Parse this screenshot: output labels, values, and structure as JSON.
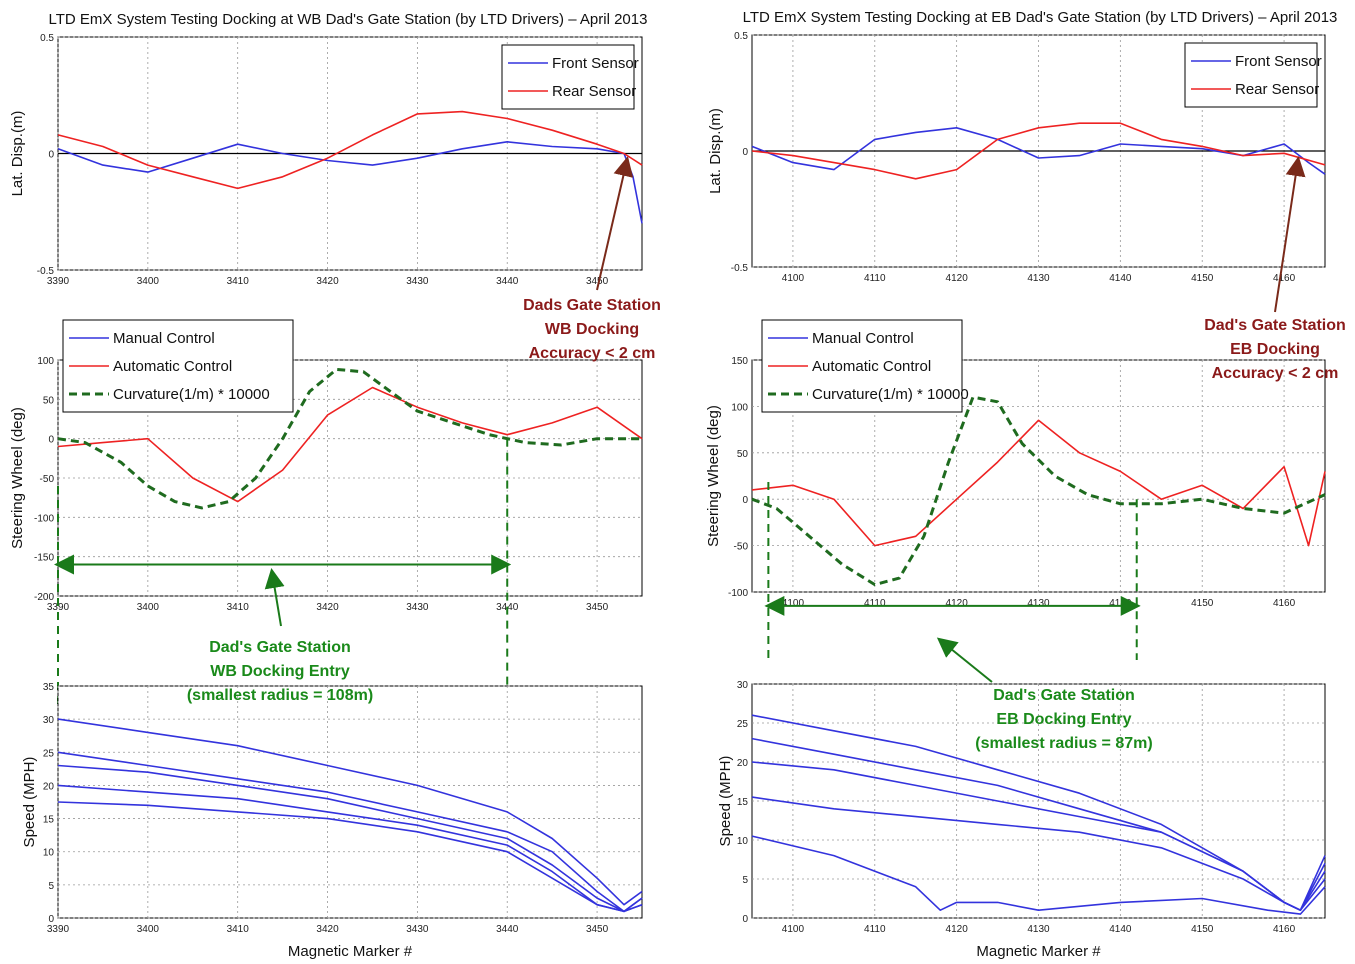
{
  "panels": {
    "left": {
      "title": "LTD EmX System Testing Docking at WB Dad's Gate Station (by LTD Drivers) – April 2013",
      "annotation_red": [
        "Dads Gate Station",
        "WB Docking",
        "Accuracy < 2 cm"
      ],
      "annotation_green": [
        "Dad's Gate Station",
        "WB Docking Entry",
        "(smallest radius = 108m)"
      ]
    },
    "right": {
      "title": "LTD EmX System Testing Docking at EB Dad's Gate Station (by LTD Drivers) – April 2013",
      "annotation_red": [
        "Dad's Gate Station",
        "EB Docking",
        "Accuracy < 2 cm"
      ],
      "annotation_green": [
        "Dad's Gate Station",
        "EB Docking Entry",
        "(smallest radius = 87m)"
      ]
    }
  },
  "colors": {
    "front": "#3333dd",
    "rear": "#ee2222",
    "curvature": "#1f6b1f",
    "annotation_red": "#8b1a1a",
    "annotation_green": "#1a8a1a"
  },
  "chart_data": [
    {
      "id": "wb-disp",
      "type": "line",
      "ylabel": "Lat. Disp.(m)",
      "xlim": [
        3390,
        3455
      ],
      "ylim": [
        -0.5,
        0.5
      ],
      "xticks": [
        3390,
        3400,
        3410,
        3420,
        3430,
        3440,
        3450
      ],
      "yticks": [
        -0.5,
        0,
        0.5
      ],
      "legend": [
        "Front Sensor",
        "Rear Sensor"
      ],
      "legend_position": "top-right",
      "grid": true,
      "series": [
        {
          "name": "Front Sensor",
          "x": [
            3390,
            3395,
            3400,
            3405,
            3410,
            3415,
            3420,
            3425,
            3430,
            3435,
            3440,
            3445,
            3450,
            3453,
            3454,
            3455
          ],
          "y": [
            0.02,
            -0.05,
            -0.08,
            -0.02,
            0.04,
            0.0,
            -0.03,
            -0.05,
            -0.02,
            0.02,
            0.05,
            0.03,
            0.02,
            0.0,
            -0.1,
            -0.3
          ]
        },
        {
          "name": "Rear Sensor",
          "x": [
            3390,
            3395,
            3400,
            3405,
            3410,
            3415,
            3420,
            3425,
            3430,
            3435,
            3440,
            3445,
            3450,
            3453,
            3455
          ],
          "y": [
            0.08,
            0.03,
            -0.05,
            -0.1,
            -0.15,
            -0.1,
            -0.02,
            0.08,
            0.17,
            0.18,
            0.15,
            0.1,
            0.04,
            0.0,
            -0.05
          ]
        }
      ]
    },
    {
      "id": "wb-steer",
      "type": "line",
      "ylabel": "Steering Wheel (deg)",
      "xlim": [
        3390,
        3455
      ],
      "ylim": [
        -200,
        100
      ],
      "xticks": [
        3390,
        3400,
        3410,
        3420,
        3430,
        3440,
        3450
      ],
      "yticks": [
        -200,
        -150,
        -100,
        -50,
        0,
        50,
        100
      ],
      "legend": [
        "Manual Control",
        "Automatic Control",
        "Curvature(1/m) * 10000"
      ],
      "legend_position": "top-left",
      "grid": true,
      "series": [
        {
          "name": "Automatic Control",
          "x": [
            3390,
            3395,
            3400,
            3405,
            3410,
            3415,
            3420,
            3425,
            3430,
            3435,
            3440,
            3445,
            3450,
            3455
          ],
          "y": [
            -10,
            -5,
            0,
            -50,
            -80,
            -40,
            30,
            65,
            40,
            20,
            5,
            20,
            40,
            0
          ]
        },
        {
          "name": "Curvature(1/m) * 10000",
          "x": [
            3390,
            3393,
            3397,
            3400,
            3403,
            3406,
            3409,
            3412,
            3415,
            3418,
            3421,
            3424,
            3427,
            3430,
            3434,
            3438,
            3442,
            3446,
            3450,
            3455
          ],
          "y": [
            0,
            -5,
            -30,
            -60,
            -80,
            -88,
            -80,
            -50,
            0,
            60,
            88,
            85,
            60,
            35,
            20,
            5,
            -5,
            -8,
            0,
            0
          ]
        }
      ],
      "ranges": [
        {
          "x1": 3390,
          "x2": 3440,
          "y": -160
        }
      ]
    },
    {
      "id": "wb-speed",
      "type": "line",
      "ylabel": "Speed (MPH)",
      "xlabel": "Magnetic Marker #",
      "xlim": [
        3390,
        3455
      ],
      "ylim": [
        0,
        35
      ],
      "xticks": [
        3390,
        3400,
        3410,
        3420,
        3430,
        3440,
        3450
      ],
      "yticks": [
        0,
        5,
        10,
        15,
        20,
        25,
        30,
        35
      ],
      "grid": true,
      "series": [
        {
          "name": "",
          "x": [
            3390,
            3400,
            3410,
            3420,
            3430,
            3440,
            3445,
            3450,
            3453,
            3455
          ],
          "y": [
            30,
            28,
            26,
            23,
            20,
            16,
            12,
            6,
            2,
            4
          ]
        },
        {
          "name": "",
          "x": [
            3390,
            3400,
            3410,
            3420,
            3430,
            3440,
            3445,
            3450,
            3453,
            3455
          ],
          "y": [
            25,
            23,
            21,
            19,
            16,
            13,
            10,
            4,
            1,
            3
          ]
        },
        {
          "name": "",
          "x": [
            3390,
            3400,
            3410,
            3420,
            3430,
            3440,
            3445,
            3450,
            3453,
            3455
          ],
          "y": [
            23,
            22,
            20,
            18,
            15,
            12,
            8,
            3,
            1,
            2
          ]
        },
        {
          "name": "",
          "x": [
            3390,
            3400,
            3410,
            3420,
            3430,
            3440,
            3445,
            3450,
            3453,
            3455
          ],
          "y": [
            20,
            19,
            18,
            16,
            14,
            11,
            7,
            2,
            1,
            3
          ]
        },
        {
          "name": "",
          "x": [
            3390,
            3400,
            3410,
            3420,
            3430,
            3440,
            3445,
            3450,
            3453,
            3455
          ],
          "y": [
            17.5,
            17,
            16,
            15,
            13,
            10,
            6,
            2,
            1,
            2
          ]
        }
      ]
    },
    {
      "id": "eb-disp",
      "type": "line",
      "ylabel": "Lat. Disp.(m)",
      "xlim": [
        4095,
        4165
      ],
      "ylim": [
        -0.5,
        0.5
      ],
      "xticks": [
        4100,
        4110,
        4120,
        4130,
        4140,
        4150,
        4160
      ],
      "yticks": [
        -0.5,
        0,
        0.5
      ],
      "legend": [
        "Front Sensor",
        "Rear Sensor"
      ],
      "legend_position": "top-right",
      "grid": true,
      "series": [
        {
          "name": "Front Sensor",
          "x": [
            4095,
            4100,
            4105,
            4110,
            4115,
            4120,
            4125,
            4130,
            4135,
            4140,
            4145,
            4150,
            4155,
            4160,
            4163,
            4165
          ],
          "y": [
            0.02,
            -0.05,
            -0.08,
            0.05,
            0.08,
            0.1,
            0.05,
            -0.03,
            -0.02,
            0.03,
            0.02,
            0.01,
            -0.02,
            0.03,
            -0.05,
            -0.1
          ]
        },
        {
          "name": "Rear Sensor",
          "x": [
            4095,
            4100,
            4105,
            4110,
            4115,
            4120,
            4125,
            4130,
            4135,
            4140,
            4145,
            4150,
            4155,
            4160,
            4165
          ],
          "y": [
            0.0,
            -0.02,
            -0.05,
            -0.08,
            -0.12,
            -0.08,
            0.05,
            0.1,
            0.12,
            0.12,
            0.05,
            0.02,
            -0.02,
            -0.01,
            -0.06
          ]
        }
      ]
    },
    {
      "id": "eb-steer",
      "type": "line",
      "ylabel": "Steering Wheel (deg)",
      "xlim": [
        4095,
        4165
      ],
      "ylim": [
        -100,
        150
      ],
      "xticks": [
        4100,
        4110,
        4120,
        4130,
        4140,
        4150,
        4160
      ],
      "yticks": [
        -100,
        -50,
        0,
        50,
        100,
        150
      ],
      "legend": [
        "Manual Control",
        "Automatic Control",
        "Curvature(1/m) * 10000"
      ],
      "legend_position": "top-left",
      "grid": true,
      "series": [
        {
          "name": "Automatic Control",
          "x": [
            4095,
            4100,
            4105,
            4110,
            4115,
            4120,
            4125,
            4130,
            4135,
            4140,
            4145,
            4150,
            4155,
            4160,
            4163,
            4165
          ],
          "y": [
            10,
            15,
            0,
            -50,
            -40,
            0,
            40,
            85,
            50,
            30,
            0,
            15,
            -10,
            35,
            -50,
            30
          ]
        },
        {
          "name": "Curvature(1/m) * 10000",
          "x": [
            4095,
            4098,
            4102,
            4106,
            4110,
            4113,
            4116,
            4119,
            4122,
            4125,
            4128,
            4132,
            4136,
            4140,
            4145,
            4150,
            4155,
            4160,
            4165
          ],
          "y": [
            0,
            -10,
            -40,
            -70,
            -92,
            -85,
            -40,
            40,
            110,
            105,
            60,
            25,
            5,
            -5,
            -5,
            0,
            -10,
            -15,
            5
          ]
        }
      ],
      "ranges": [
        {
          "x1": 4097,
          "x2": 4142,
          "y": -115
        }
      ]
    },
    {
      "id": "eb-speed",
      "type": "line",
      "ylabel": "Speed (MPH)",
      "xlabel": "Magnetic Marker #",
      "xlim": [
        4095,
        4165
      ],
      "ylim": [
        0,
        30
      ],
      "xticks": [
        4100,
        4110,
        4120,
        4130,
        4140,
        4150,
        4160
      ],
      "yticks": [
        0,
        5,
        10,
        15,
        20,
        25,
        30
      ],
      "grid": true,
      "series": [
        {
          "name": "",
          "x": [
            4095,
            4105,
            4115,
            4125,
            4135,
            4145,
            4155,
            4160,
            4162,
            4165
          ],
          "y": [
            26,
            24,
            22,
            19,
            16,
            12,
            6,
            2,
            1,
            8
          ]
        },
        {
          "name": "",
          "x": [
            4095,
            4105,
            4115,
            4125,
            4135,
            4145,
            4155,
            4160,
            4162,
            4165
          ],
          "y": [
            23,
            21,
            19,
            17,
            14,
            11,
            6,
            2,
            1,
            7
          ]
        },
        {
          "name": "",
          "x": [
            4095,
            4105,
            4115,
            4125,
            4135,
            4145,
            4155,
            4160,
            4162,
            4165
          ],
          "y": [
            20,
            19,
            17,
            15,
            13,
            11,
            6,
            2,
            1,
            6
          ]
        },
        {
          "name": "",
          "x": [
            4095,
            4105,
            4115,
            4125,
            4135,
            4145,
            4155,
            4160,
            4162,
            4165
          ],
          "y": [
            15.5,
            14,
            13,
            12,
            11,
            9,
            5,
            2,
            1,
            5
          ]
        },
        {
          "name": "",
          "x": [
            4095,
            4105,
            4115,
            4118,
            4120,
            4125,
            4130,
            4140,
            4150,
            4158,
            4162,
            4165
          ],
          "y": [
            10.5,
            8,
            4,
            1,
            2,
            2,
            1,
            2,
            2.5,
            1,
            0.5,
            4
          ]
        }
      ]
    }
  ]
}
